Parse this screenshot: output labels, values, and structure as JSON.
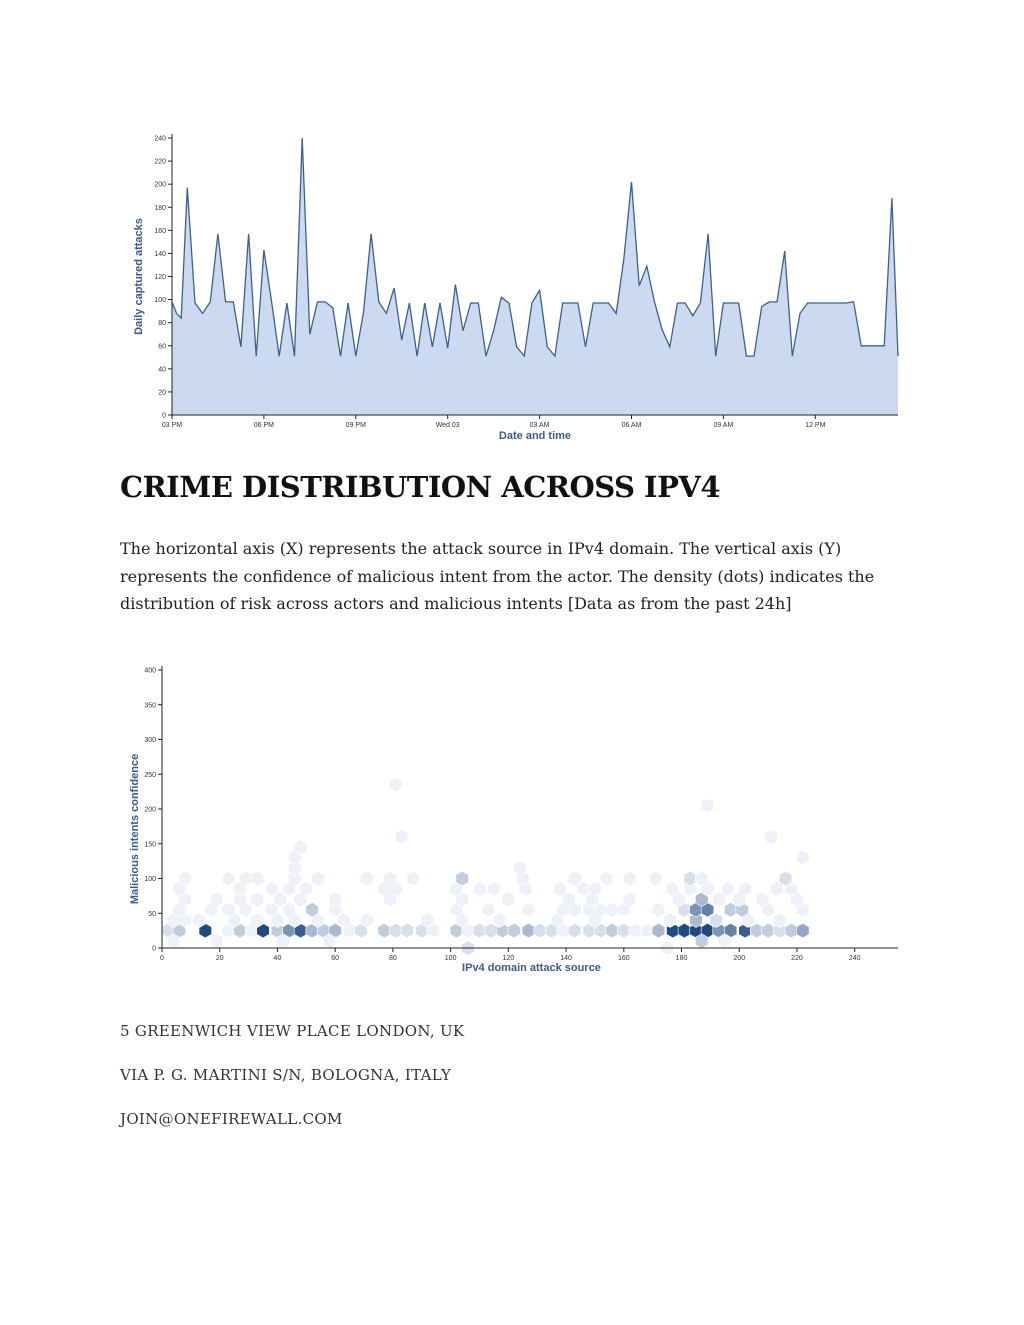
{
  "chart_data": [
    {
      "type": "area",
      "xlabel": "Date and time",
      "ylabel": "Daily captured attacks",
      "ylim": [
        0,
        240
      ],
      "yticks": [
        0,
        20,
        40,
        60,
        80,
        100,
        120,
        140,
        160,
        180,
        200,
        220,
        240
      ],
      "xticks": [
        "03 PM",
        "06 PM",
        "09 PM",
        "Wed 03",
        "03 AM",
        "06 AM",
        "09 AM",
        "12 PM"
      ],
      "xtick_positions_hours": [
        0,
        3,
        6,
        9,
        12,
        15,
        18,
        21
      ],
      "xlim_hours": [
        0,
        23.7
      ],
      "fill_color": "#cbdaf1",
      "line_color": "#3f5f8c",
      "series": [
        {
          "x_hours": [
            0,
            0.15,
            0.3,
            0.5,
            0.75,
            1,
            1.25,
            1.5,
            1.75,
            2,
            2.25,
            2.5,
            2.75,
            3,
            3.25,
            3.5,
            3.75,
            4,
            4.25,
            4.5,
            4.75,
            5,
            5.25,
            5.5,
            5.75,
            6,
            6.25,
            6.5,
            6.75,
            7,
            7.25,
            7.5,
            7.75,
            8,
            8.25,
            8.5,
            8.75,
            9,
            9.25,
            9.5,
            9.75,
            10,
            10.25,
            10.5,
            10.75,
            11,
            11.25,
            11.5,
            11.75,
            12,
            12.25,
            12.5,
            12.75,
            13,
            13.25,
            13.5,
            13.75,
            14,
            14.25,
            14.5,
            14.75,
            15,
            15.25,
            15.5,
            15.75,
            16,
            16.25,
            16.5,
            16.75,
            17,
            17.25,
            17.5,
            17.75,
            18,
            18.25,
            18.5,
            18.75,
            19,
            19.25,
            19.5,
            19.75,
            20,
            20.25,
            20.5,
            20.75,
            21,
            21.25,
            21.5,
            21.75,
            22,
            22.25,
            22.5,
            22.75,
            23,
            23.25,
            23.5,
            23.7
          ],
          "y": [
            98,
            88,
            84,
            197,
            97,
            88,
            98,
            157,
            98,
            98,
            59,
            157,
            51,
            143,
            98,
            51,
            97,
            51,
            240,
            70,
            98,
            98,
            93,
            51,
            97,
            51,
            89,
            157,
            98,
            88,
            110,
            65,
            97,
            51,
            97,
            59,
            97,
            58,
            113,
            73,
            97,
            97,
            51,
            73,
            102,
            97,
            59,
            51,
            97,
            108,
            59,
            51,
            97,
            97,
            97,
            59,
            97,
            97,
            97,
            88,
            135,
            202,
            112,
            129,
            98,
            74,
            59,
            97,
            97,
            86,
            97,
            157,
            51,
            97,
            97,
            97,
            51,
            51,
            94,
            98,
            98,
            142,
            51,
            88,
            97,
            97,
            97,
            97,
            97,
            97,
            98,
            60,
            60,
            60,
            60,
            188,
            51
          ]
        }
      ]
    },
    {
      "type": "heatmap",
      "subtype": "hexbin",
      "xlabel": "IPv4 domain attack source",
      "ylabel": "Malicious intents confidence",
      "xlim": [
        0,
        255
      ],
      "ylim": [
        0,
        400
      ],
      "xticks": [
        0,
        20,
        40,
        60,
        80,
        100,
        120,
        140,
        160,
        180,
        200,
        220,
        240
      ],
      "yticks": [
        0,
        50,
        100,
        150,
        200,
        250,
        300,
        350,
        400
      ],
      "color_low": "#eef2f8",
      "color_high": "#1f4a80",
      "bins": [
        [
          2,
          25,
          2
        ],
        [
          6,
          25,
          3
        ],
        [
          15,
          25,
          10
        ],
        [
          23,
          25,
          1
        ],
        [
          27,
          25,
          3
        ],
        [
          31,
          25,
          1
        ],
        [
          35,
          25,
          10
        ],
        [
          40,
          25,
          3
        ],
        [
          44,
          25,
          6
        ],
        [
          48,
          25,
          9
        ],
        [
          52,
          25,
          4
        ],
        [
          56,
          25,
          3
        ],
        [
          60,
          25,
          4
        ],
        [
          65,
          25,
          1
        ],
        [
          69,
          25,
          2
        ],
        [
          77,
          25,
          3
        ],
        [
          81,
          25,
          2
        ],
        [
          85,
          25,
          2
        ],
        [
          90,
          25,
          2
        ],
        [
          94,
          25,
          1
        ],
        [
          102,
          25,
          3
        ],
        [
          106,
          25,
          1
        ],
        [
          110,
          25,
          2
        ],
        [
          114,
          25,
          2
        ],
        [
          118,
          25,
          3
        ],
        [
          122,
          25,
          3
        ],
        [
          127,
          25,
          4
        ],
        [
          131,
          25,
          2
        ],
        [
          135,
          25,
          2
        ],
        [
          139,
          25,
          1
        ],
        [
          143,
          25,
          2
        ],
        [
          148,
          25,
          2
        ],
        [
          152,
          25,
          2
        ],
        [
          156,
          25,
          3
        ],
        [
          160,
          25,
          2
        ],
        [
          164,
          25,
          1
        ],
        [
          168,
          25,
          1
        ],
        [
          172,
          25,
          4
        ],
        [
          177,
          25,
          10
        ],
        [
          181,
          25,
          10
        ],
        [
          185,
          25,
          10
        ],
        [
          189,
          25,
          10
        ],
        [
          193,
          25,
          6
        ],
        [
          197,
          25,
          7
        ],
        [
          202,
          25,
          9
        ],
        [
          206,
          25,
          3
        ],
        [
          210,
          25,
          3
        ],
        [
          214,
          25,
          2
        ],
        [
          218,
          25,
          3
        ],
        [
          222,
          25,
          5
        ],
        [
          4,
          10,
          1
        ],
        [
          19,
          10,
          1
        ],
        [
          42,
          10,
          1
        ],
        [
          58,
          10,
          1
        ],
        [
          106,
          0,
          2
        ],
        [
          175,
          0,
          1
        ],
        [
          187,
          10,
          3
        ],
        [
          195,
          10,
          1
        ],
        [
          4,
          40,
          1
        ],
        [
          8,
          40,
          1
        ],
        [
          13,
          40,
          1
        ],
        [
          25,
          40,
          1
        ],
        [
          33,
          40,
          1
        ],
        [
          40,
          40,
          1
        ],
        [
          46,
          40,
          1
        ],
        [
          54,
          40,
          1
        ],
        [
          63,
          40,
          1
        ],
        [
          71,
          40,
          1
        ],
        [
          92,
          40,
          1
        ],
        [
          104,
          40,
          1
        ],
        [
          117,
          40,
          1
        ],
        [
          137,
          40,
          1
        ],
        [
          150,
          40,
          1
        ],
        [
          176,
          40,
          1
        ],
        [
          185,
          40,
          4
        ],
        [
          192,
          40,
          2
        ],
        [
          203,
          40,
          1
        ],
        [
          214,
          40,
          1
        ],
        [
          6,
          55,
          1
        ],
        [
          17,
          55,
          1
        ],
        [
          23,
          55,
          1
        ],
        [
          29,
          55,
          1
        ],
        [
          38,
          55,
          1
        ],
        [
          44,
          55,
          1
        ],
        [
          52,
          55,
          3
        ],
        [
          60,
          55,
          1
        ],
        [
          102,
          55,
          1
        ],
        [
          113,
          55,
          1
        ],
        [
          127,
          55,
          1
        ],
        [
          139,
          55,
          1
        ],
        [
          143,
          55,
          1
        ],
        [
          148,
          55,
          1
        ],
        [
          152,
          55,
          1
        ],
        [
          156,
          55,
          1
        ],
        [
          160,
          55,
          1
        ],
        [
          172,
          55,
          1
        ],
        [
          181,
          55,
          2
        ],
        [
          185,
          55,
          6
        ],
        [
          189,
          55,
          7
        ],
        [
          197,
          55,
          3
        ],
        [
          201,
          55,
          3
        ],
        [
          210,
          55,
          1
        ],
        [
          222,
          55,
          1
        ],
        [
          8,
          70,
          1
        ],
        [
          19,
          70,
          1
        ],
        [
          27,
          70,
          1
        ],
        [
          33,
          70,
          1
        ],
        [
          41,
          70,
          1
        ],
        [
          48,
          70,
          1
        ],
        [
          60,
          70,
          1
        ],
        [
          79,
          70,
          1
        ],
        [
          104,
          70,
          1
        ],
        [
          120,
          70,
          1
        ],
        [
          141,
          70,
          1
        ],
        [
          149,
          70,
          1
        ],
        [
          162,
          70,
          1
        ],
        [
          179,
          70,
          1
        ],
        [
          187,
          70,
          4
        ],
        [
          193,
          70,
          1
        ],
        [
          200,
          70,
          1
        ],
        [
          208,
          70,
          1
        ],
        [
          220,
          70,
          1
        ],
        [
          6,
          85,
          1
        ],
        [
          27,
          85,
          1
        ],
        [
          38,
          85,
          1
        ],
        [
          44,
          85,
          1
        ],
        [
          50,
          85,
          1
        ],
        [
          77,
          85,
          1
        ],
        [
          81,
          85,
          1
        ],
        [
          102,
          85,
          1
        ],
        [
          110,
          85,
          1
        ],
        [
          115,
          85,
          1
        ],
        [
          126,
          85,
          1
        ],
        [
          138,
          85,
          1
        ],
        [
          146,
          85,
          1
        ],
        [
          150,
          85,
          1
        ],
        [
          177,
          85,
          1
        ],
        [
          183,
          85,
          1
        ],
        [
          189,
          85,
          1
        ],
        [
          196,
          85,
          1
        ],
        [
          202,
          85,
          1
        ],
        [
          213,
          85,
          1
        ],
        [
          218,
          85,
          1
        ],
        [
          8,
          100,
          1
        ],
        [
          23,
          100,
          1
        ],
        [
          29,
          100,
          1
        ],
        [
          33,
          100,
          1
        ],
        [
          46,
          100,
          1
        ],
        [
          54,
          100,
          1
        ],
        [
          71,
          100,
          1
        ],
        [
          79,
          100,
          1
        ],
        [
          87,
          100,
          1
        ],
        [
          104,
          100,
          3
        ],
        [
          125,
          100,
          1
        ],
        [
          143,
          100,
          1
        ],
        [
          154,
          100,
          1
        ],
        [
          162,
          100,
          1
        ],
        [
          171,
          100,
          1
        ],
        [
          183,
          100,
          2
        ],
        [
          187,
          100,
          1
        ],
        [
          216,
          100,
          2
        ],
        [
          124,
          115,
          1
        ],
        [
          46,
          115,
          1
        ],
        [
          46,
          130,
          1
        ],
        [
          48,
          145,
          1
        ],
        [
          83,
          160,
          1
        ],
        [
          211,
          160,
          1
        ],
        [
          222,
          130,
          1
        ],
        [
          81,
          235,
          1
        ],
        [
          189,
          205,
          1
        ]
      ]
    }
  ],
  "heading": "CRIME DISTRIBUTION ACROSS IPV4",
  "description": "The horizontal axis (X) represents the attack source in IPv4 domain. The vertical axis (Y) represents the confidence of malicious intent from the actor. The density (dots) indicates the distribution of risk across actors and malicious intents [Data as from the past 24h]",
  "addresses": [
    "5 GREENWICH VIEW PLACE LONDON, UK",
    "VIA P. G. MARTINI S/N, BOLOGNA, ITALY",
    "JOIN@ONEFIREWALL.COM"
  ]
}
